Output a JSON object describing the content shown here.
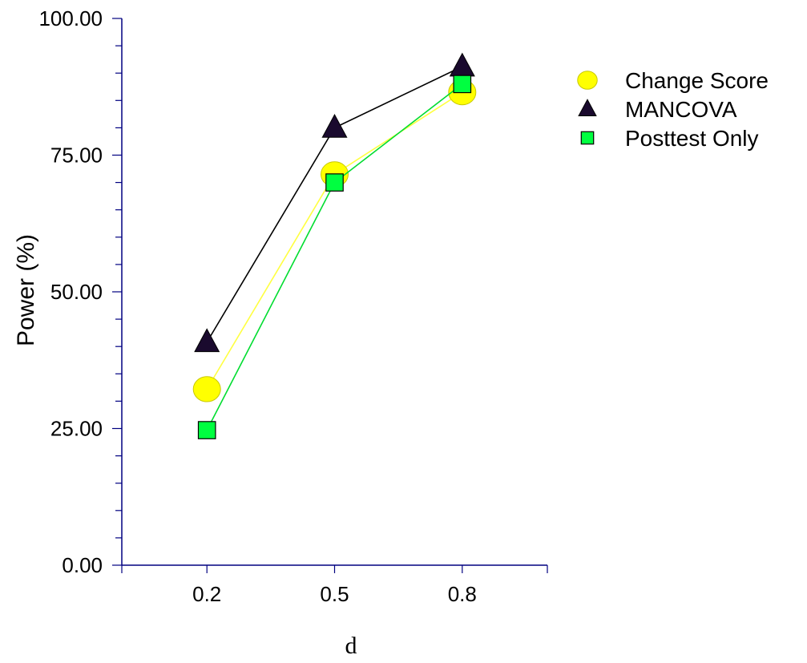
{
  "chart_data": {
    "type": "line",
    "xlabel": "d",
    "ylabel": "Power (%)",
    "categories": [
      "0.2",
      "0.5",
      "0.8"
    ],
    "x": [
      0.2,
      0.5,
      0.8
    ],
    "xlim": [
      0.0,
      1.0
    ],
    "ylim": [
      0,
      100
    ],
    "yticks": [
      "0.00",
      "25.00",
      "50.00",
      "75.00",
      "100.00"
    ],
    "ytick_values": [
      0,
      25,
      50,
      75,
      100
    ],
    "grid": false,
    "legend_position": "top-right",
    "series": [
      {
        "name": "Change Score",
        "marker": "circle",
        "color": "#ffff00",
        "edge": "#c8c800",
        "line_color": "#ffff40",
        "values": [
          32.2,
          71.5,
          86.5
        ]
      },
      {
        "name": "MANCOVA",
        "marker": "triangle",
        "color": "#1a0a2e",
        "edge": "#000000",
        "line_color": "#000000",
        "values": [
          40.8,
          80.0,
          91.2
        ]
      },
      {
        "name": "Posttest Only",
        "marker": "square",
        "color": "#00ff40",
        "edge": "#000000",
        "line_color": "#00dd30",
        "values": [
          24.7,
          70.0,
          88.0
        ]
      }
    ]
  }
}
